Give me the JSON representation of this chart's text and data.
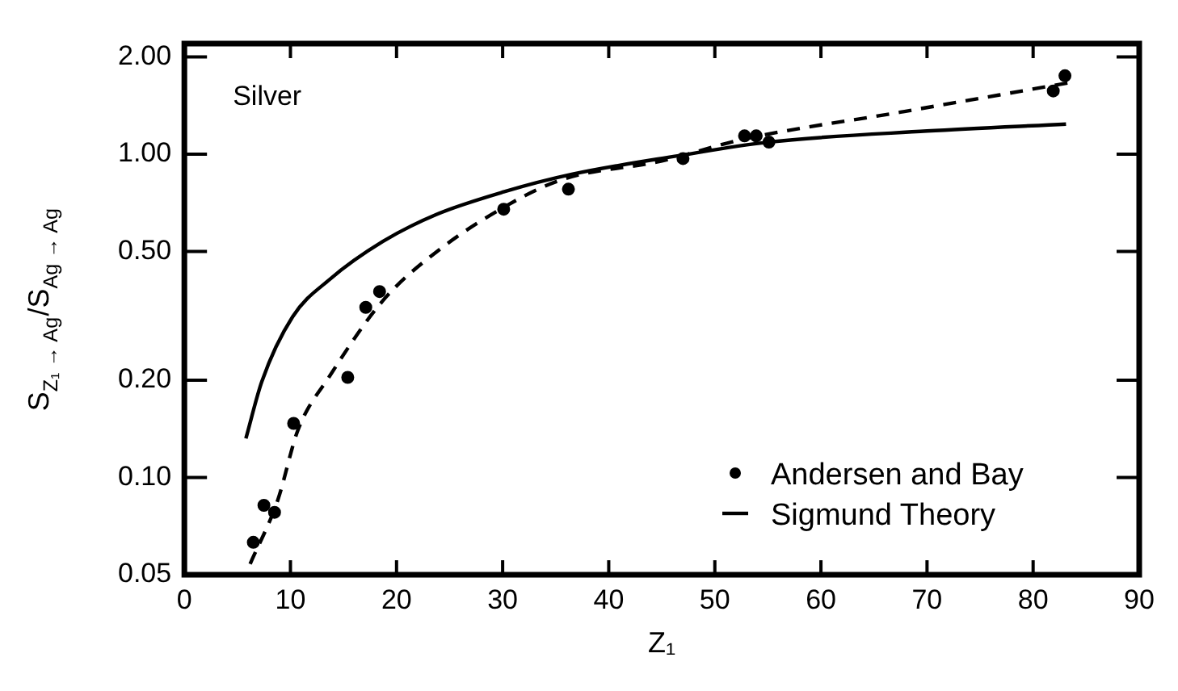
{
  "chart_data": {
    "type": "scatter",
    "xlabel": "Z₁",
    "ylabel": "S$_{Z₁ → Ag}$/S$_{Ag → Ag}$",
    "annotations": [
      "Silver"
    ],
    "log": "y",
    "grid": false,
    "legend": "bottom right",
    "xlim": [
      0,
      90
    ],
    "xticks": [
      0,
      10,
      20,
      30,
      40,
      50,
      60,
      70,
      80,
      90
    ],
    "ylim": [
      0.05,
      2.2
    ],
    "yticks": [
      {
        "value": 0.05,
        "label": "0.05"
      },
      {
        "value": 0.1,
        "label": "0.10"
      },
      {
        "value": 0.2,
        "label": "0.20"
      },
      {
        "value": 0.5,
        "label": "0.50"
      },
      {
        "value": 1,
        "label": "1.00"
      },
      {
        "value": 2,
        "label": "2.00"
      }
    ],
    "series": [
      {
        "name": "Andersen and Bay",
        "type": "scatter",
        "marker": "circle",
        "color": "#000000",
        "x": [
          6.5,
          7.5,
          8.5,
          10.3,
          15.4,
          17.1,
          18.4,
          30.1,
          36.2,
          47,
          52.8,
          53.9,
          55.1,
          81.9,
          83
        ],
        "values": [
          0.063,
          0.082,
          0.078,
          0.147,
          0.204,
          0.336,
          0.376,
          0.676,
          0.78,
          0.97,
          1.14,
          1.14,
          1.09,
          1.57,
          1.75
        ]
      },
      {
        "name": "Sigmund Theory",
        "type": "line",
        "marker": "none",
        "line_style": "solid",
        "color": "#000000",
        "x": [
          5.8,
          7.3,
          10.2,
          13.7,
          18.7,
          23.7,
          30.1,
          36.6,
          46.6,
          55,
          70,
          83.1
        ],
        "values": [
          0.132,
          0.198,
          0.314,
          0.41,
          0.537,
          0.65,
          0.765,
          0.868,
          0.99,
          1.09,
          1.18,
          1.24
        ]
      },
      {
        "type": "line",
        "marker": "none",
        "line_style": "dashed",
        "color": "#000000",
        "x": [
          6.2,
          8.8,
          10.7,
          13.7,
          18.7,
          23.7,
          30.6,
          35.6,
          45.1,
          52.5,
          67.5,
          84.1
        ],
        "values": [
          0.054,
          0.085,
          0.14,
          0.206,
          0.352,
          0.497,
          0.7,
          0.835,
          0.955,
          1.11,
          1.35,
          1.68
        ]
      }
    ]
  }
}
